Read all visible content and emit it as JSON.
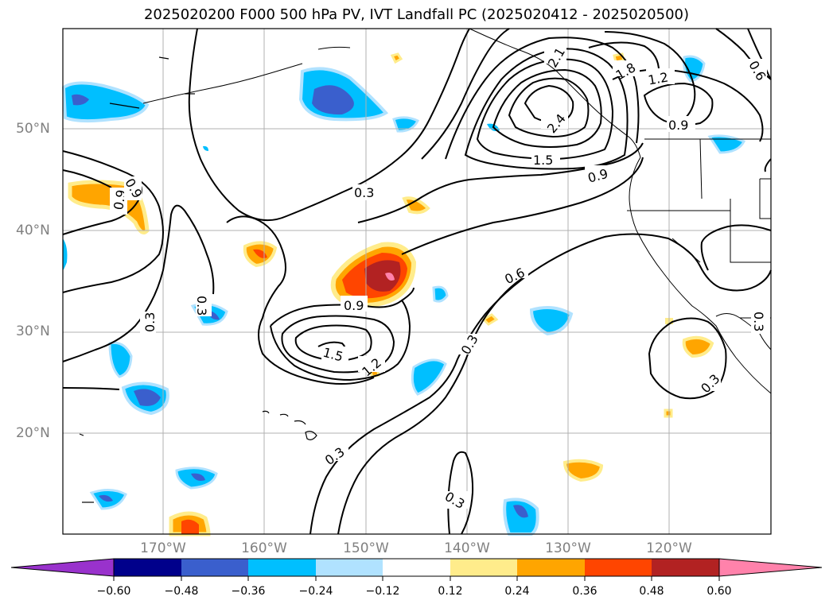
{
  "title": "2025020200 F000 500 hPa PV, IVT Landfall PC (2025020412 - 2025020500)",
  "lat_labels": [
    "50°N",
    "40°N",
    "30°N",
    "20°N"
  ],
  "lon_labels": [
    "170°W",
    "160°W",
    "150°W",
    "140°W",
    "130°W",
    "120°W"
  ],
  "colorbar": {
    "ticks": [
      "−0.60",
      "−0.48",
      "−0.36",
      "−0.24",
      "−0.12",
      "0.12",
      "0.24",
      "0.36",
      "0.48",
      "0.60"
    ],
    "colors": [
      "#9932cc",
      "#00008b",
      "#3a5fcd",
      "#00bfff",
      "#b0e2ff",
      "#ffffff",
      "#ffec8b",
      "#ffa500",
      "#ff4500",
      "#b22222",
      "#ff82ab"
    ]
  },
  "contour_labels": [
    "0.3",
    "0.6",
    "0.9",
    "1.2",
    "1.5",
    "1.8",
    "2.1",
    "2.4"
  ]
}
